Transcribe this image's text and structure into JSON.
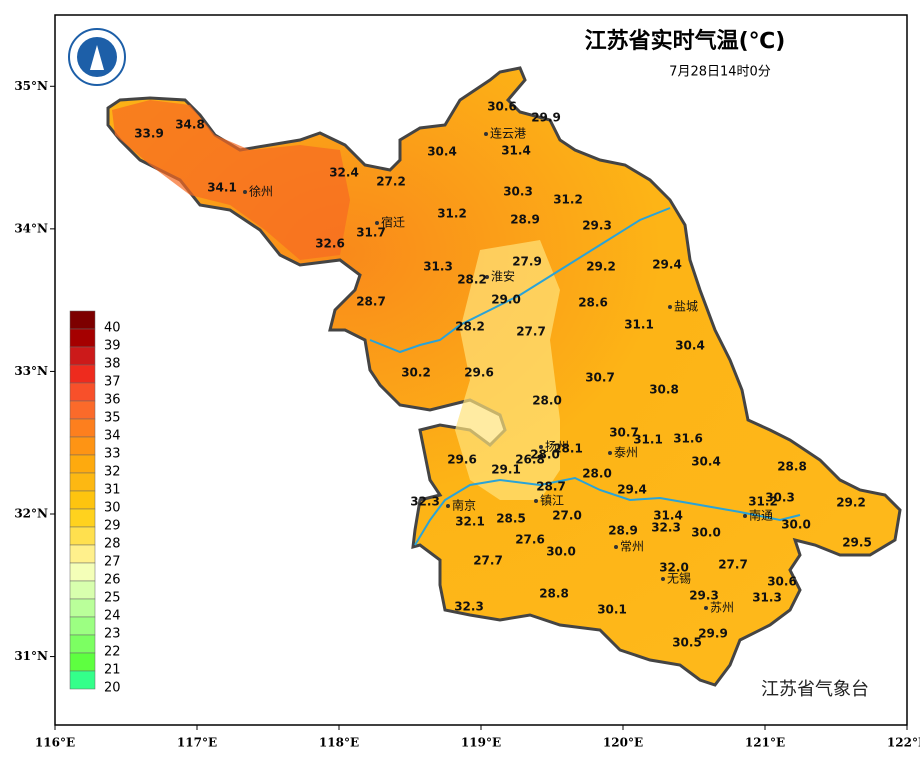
{
  "map": {
    "title": "江苏省实时气温(℃)",
    "subtitle": "7月28日14时0分",
    "credit": "江苏省气象台",
    "xlim": [
      116,
      122
    ],
    "ylim": [
      30.52,
      35.5
    ],
    "xticks": [
      {
        "value": 116,
        "label": "116°E"
      },
      {
        "value": 117,
        "label": "117°E"
      },
      {
        "value": 118,
        "label": "118°E"
      },
      {
        "value": 119,
        "label": "119°E"
      },
      {
        "value": 120,
        "label": "120°E"
      },
      {
        "value": 121,
        "label": "121°E"
      },
      {
        "value": 122,
        "label": "122°E"
      }
    ],
    "yticks": [
      {
        "value": 31,
        "label": "31°N"
      },
      {
        "value": 32,
        "label": "32°N"
      },
      {
        "value": 33,
        "label": "33°N"
      },
      {
        "value": 34,
        "label": "34°N"
      },
      {
        "value": 35,
        "label": "35°N"
      }
    ],
    "legend": {
      "levels": [
        40,
        39,
        38,
        37,
        36,
        35,
        34,
        33,
        32,
        31,
        30,
        29,
        28,
        27,
        26,
        25,
        24,
        23,
        22,
        21,
        20
      ],
      "colors": [
        "#7d0000",
        "#a50000",
        "#cc1a1a",
        "#ee2b1e",
        "#f8502a",
        "#fb6a2a",
        "#fd7f1e",
        "#fe9414",
        "#feaa0e",
        "#fdb812",
        "#fec40f",
        "#ffd21e",
        "#ffe04e",
        "#fff08c",
        "#f4ffb8",
        "#d8ffae",
        "#baff9a",
        "#9cff82",
        "#7cff62",
        "#5eff40",
        "#34ff8a"
      ]
    },
    "cities": [
      "连云港",
      "徐州",
      "宿迁",
      "淮安",
      "盐城",
      "扬州",
      "泰州",
      "南京",
      "镇江",
      "南通",
      "常州",
      "无锡",
      "苏州"
    ],
    "stations": [
      "30.6",
      "29.9",
      "30.4",
      "31.4",
      "33.9",
      "34.8",
      "32.4",
      "27.2",
      "34.1",
      "30.3",
      "31.2",
      "31.2",
      "28.9",
      "29.3",
      "31.7",
      "32.6",
      "27.9",
      "29.2",
      "29.4",
      "31.3",
      "28.2",
      "29.0",
      "28.6",
      "28.7",
      "31.1",
      "28.2",
      "27.7",
      "30.4",
      "30.2",
      "29.6",
      "30.7",
      "30.8",
      "28.0",
      "30.7",
      "31.1",
      "31.6",
      "28.1",
      "28.0",
      "26.8",
      "29.6",
      "29.1",
      "30.4",
      "28.8",
      "28.0",
      "28.7",
      "29.4",
      "30.3",
      "31.2",
      "29.2",
      "32.3",
      "27.0",
      "31.4",
      "30.0",
      "32.1",
      "28.5",
      "32.3",
      "28.9",
      "30.0",
      "29.5",
      "27.6",
      "30.0",
      "27.7",
      "32.0",
      "27.7",
      "30.6",
      "28.8",
      "29.3",
      "31.3",
      "32.3",
      "30.1",
      "29.9",
      "30.5"
    ]
  }
}
